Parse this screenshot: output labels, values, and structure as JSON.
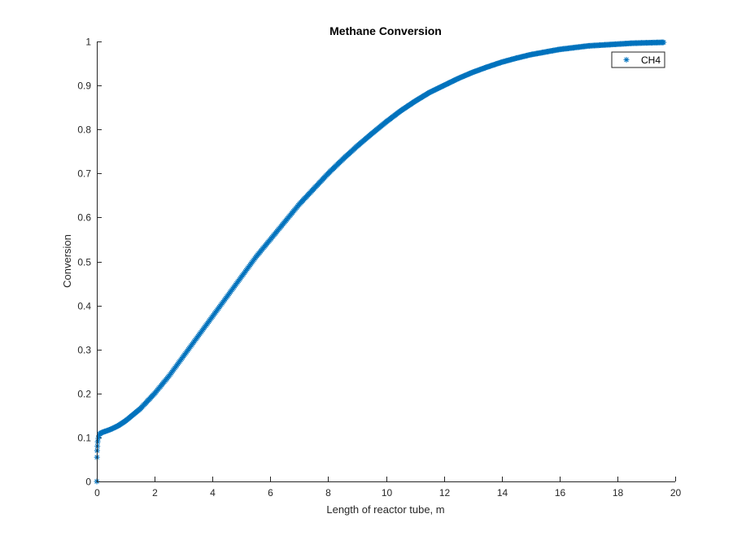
{
  "chart_data": {
    "type": "scatter",
    "title": "Methane Conversion",
    "xlabel": "Length of reactor tube, m",
    "ylabel": "Conversion",
    "xlim": [
      0,
      20
    ],
    "ylim": [
      0,
      1
    ],
    "xticks": [
      "0",
      "2",
      "4",
      "6",
      "8",
      "10",
      "12",
      "14",
      "16",
      "18",
      "20"
    ],
    "yticks": [
      "0",
      "0.1",
      "0.2",
      "0.3",
      "0.4",
      "0.5",
      "0.6",
      "0.7",
      "0.8",
      "0.9",
      "1"
    ],
    "grid": false,
    "legend_position": "top-right",
    "marker": "asterisk",
    "series": [
      {
        "name": "CH4",
        "color": "#0072BD",
        "x": [
          0,
          0.005,
          0.01,
          0.02,
          0.03,
          0.05,
          0.08,
          0.1,
          0.2,
          0.3,
          0.5,
          0.75,
          1.0,
          1.5,
          2.0,
          2.5,
          3.0,
          3.5,
          4.0,
          4.5,
          5.0,
          5.5,
          6.0,
          6.5,
          7.0,
          7.5,
          8.0,
          8.5,
          9.0,
          9.5,
          10.0,
          10.5,
          11.0,
          11.5,
          12.0,
          12.5,
          13.0,
          13.5,
          14.0,
          14.5,
          15.0,
          15.5,
          16.0,
          16.5,
          17.0,
          17.5,
          18.0,
          18.5,
          19.0,
          19.6
        ],
        "y": [
          0,
          0.055,
          0.07,
          0.08,
          0.09,
          0.098,
          0.104,
          0.108,
          0.112,
          0.114,
          0.119,
          0.127,
          0.138,
          0.165,
          0.2,
          0.24,
          0.285,
          0.33,
          0.375,
          0.42,
          0.465,
          0.51,
          0.55,
          0.59,
          0.63,
          0.665,
          0.7,
          0.732,
          0.762,
          0.79,
          0.817,
          0.842,
          0.864,
          0.884,
          0.9,
          0.916,
          0.93,
          0.942,
          0.953,
          0.962,
          0.97,
          0.976,
          0.982,
          0.986,
          0.99,
          0.992,
          0.994,
          0.996,
          0.997,
          0.998
        ]
      }
    ]
  }
}
